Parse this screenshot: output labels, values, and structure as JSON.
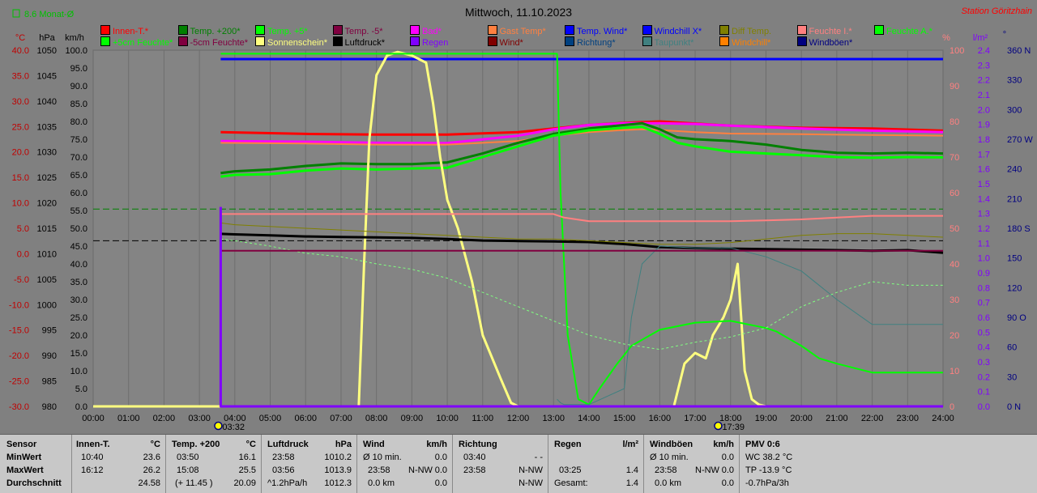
{
  "header": {
    "title": "Mittwoch, 11.10.2023",
    "station": "Station Göritzhain",
    "monthavg_label": "8.6 Monat-Ø"
  },
  "units": {
    "temp": "°C",
    "pressure": "hPa",
    "wind": "km/h",
    "percent": "%",
    "rain": "l/m²",
    "dir": "°"
  },
  "legend": [
    {
      "label": "Innen-T.*",
      "color": "#ff0000"
    },
    {
      "label": "Temp. +200*",
      "color": "#008000"
    },
    {
      "label": "Temp. +5*",
      "color": "#00ff00"
    },
    {
      "label": "Temp. -5*",
      "color": "#800040"
    },
    {
      "label": "Bad*",
      "color": "#ff00ff"
    },
    {
      "label": "Gast Temp*",
      "color": "#ff8040"
    },
    {
      "label": "Temp. Wind*",
      "color": "#0000ff"
    },
    {
      "label": "Windchill X*",
      "color": "#0000ff"
    },
    {
      "label": "Diff Temp.",
      "color": "#808000"
    },
    {
      "label": "Feuchte I.*",
      "color": "#ff8080"
    },
    {
      "label": "Feuchte A.*",
      "color": "#00ff00"
    },
    {
      "label": "+5cm Feuchte*",
      "color": "#00ff00"
    },
    {
      "label": "-5cm Feuchte*",
      "color": "#800040"
    },
    {
      "label": "Sonnenschein*",
      "color": "#ffff80"
    },
    {
      "label": "Luftdruck*",
      "color": "#000000"
    },
    {
      "label": "Regen",
      "color": "#8000ff"
    },
    {
      "label": "Wind*",
      "color": "#800000"
    },
    {
      "label": "Richtung*",
      "color": "#004080"
    },
    {
      "label": "Taupunkt*",
      "color": "#408080"
    },
    {
      "label": "Windchill*",
      "color": "#ff8000"
    },
    {
      "label": "Windböen*",
      "color": "#000080"
    }
  ],
  "axis_colors": {
    "temp": "#c00000",
    "pressure": "#000000",
    "wind": "#000000",
    "percent": "#ff8080",
    "rain": "#8000ff",
    "dir": "#000080"
  },
  "chart_data": {
    "type": "line",
    "x_range": [
      "00:00",
      "24:00"
    ],
    "x_ticks": [
      "00:00",
      "01:00",
      "02:00",
      "03:00",
      "04:00",
      "05:00",
      "06:00",
      "07:00",
      "08:00",
      "09:00",
      "10:00",
      "11:00",
      "12:00",
      "13:00",
      "14:00",
      "15:00",
      "16:00",
      "17:00",
      "18:00",
      "19:00",
      "20:00",
      "21:00",
      "22:00",
      "23:00",
      "24:00"
    ],
    "sunrise": "03:32",
    "sunset": "17:39",
    "y_axes": {
      "temp": {
        "ticks": [
          "40.0",
          "35.0",
          "30.0",
          "25.0",
          "20.0",
          "15.0",
          "10.0",
          "5.0",
          "0.0",
          "-5.0",
          "-10.0",
          "-15.0",
          "-20.0",
          "-25.0",
          "-30.0"
        ],
        "range": [
          -30,
          40
        ]
      },
      "pressure": {
        "ticks": [
          "1050",
          "1045",
          "1040",
          "1035",
          "1030",
          "1025",
          "1020",
          "1015",
          "1010",
          "1005",
          "1000",
          "995",
          "990",
          "985",
          "980"
        ],
        "range": [
          980,
          1050
        ]
      },
      "wind": {
        "ticks": [
          "100.0",
          "95.0",
          "90.0",
          "85.0",
          "80.0",
          "75.0",
          "70.0",
          "65.0",
          "60.0",
          "55.0",
          "50.0",
          "45.0",
          "40.0",
          "35.0",
          "30.0",
          "25.0",
          "20.0",
          "15.0",
          "10.0",
          "5.0",
          "0.0"
        ],
        "range": [
          0,
          100
        ]
      },
      "percent": {
        "ticks": [
          "100",
          "90",
          "80",
          "70",
          "60",
          "50",
          "40",
          "30",
          "20",
          "10",
          "0"
        ],
        "range": [
          0,
          100
        ]
      },
      "rain": {
        "ticks": [
          "2.4",
          "2.3",
          "2.2",
          "2.1",
          "2.0",
          "1.9",
          "1.8",
          "1.7",
          "1.6",
          "1.5",
          "1.4",
          "1.3",
          "1.2",
          "1.1",
          "1.0",
          "0.9",
          "0.8",
          "0.7",
          "0.6",
          "0.5",
          "0.4",
          "0.3",
          "0.2",
          "0.1",
          "0.0"
        ],
        "range": [
          0,
          2.5
        ]
      },
      "dir": {
        "ticks": [
          "360 N",
          "330",
          "300",
          "270 W",
          "240",
          "210",
          "180 S",
          "150",
          "120",
          "90 O",
          "60",
          "30",
          "0 N"
        ],
        "range": [
          0,
          360
        ]
      }
    },
    "series": [
      {
        "name": "Temp. Wind*",
        "axis": "percent",
        "color": "#0000ff",
        "width": 3,
        "x": [
          3.6,
          24
        ],
        "y": [
          97.5,
          97.5
        ]
      },
      {
        "name": "Innen-T.*",
        "axis": "percent",
        "color": "#ff0000",
        "width": 3,
        "x": [
          3.6,
          6,
          8,
          10,
          12,
          13,
          14,
          15,
          16,
          17,
          18,
          20,
          22,
          24
        ],
        "y": [
          77,
          76.5,
          76.3,
          76.3,
          77,
          78,
          79,
          79.6,
          80,
          79.4,
          78.8,
          78.2,
          78,
          77.4
        ]
      },
      {
        "name": "Bad*",
        "axis": "percent",
        "color": "#ff00ff",
        "width": 3,
        "x": [
          3.6,
          6,
          8,
          10,
          12,
          13,
          14,
          15,
          16,
          17,
          18,
          20,
          22,
          24
        ],
        "y": [
          74.5,
          74.3,
          74,
          73.9,
          76,
          77.8,
          79,
          79.5,
          79.5,
          79.3,
          78.8,
          78,
          77.4,
          77
        ]
      },
      {
        "name": "Gast Temp*",
        "axis": "percent",
        "color": "#ff8040",
        "width": 2,
        "x": [
          3.6,
          6,
          8,
          10,
          12,
          13,
          14,
          15,
          15.5,
          16,
          17,
          18,
          20,
          22,
          24
        ],
        "y": [
          74,
          73.8,
          73.5,
          73.5,
          74.5,
          76,
          77,
          77.6,
          77.8,
          77.6,
          77,
          76.6,
          76.4,
          76.2,
          76
        ]
      },
      {
        "name": "Temp. +200*",
        "axis": "percent",
        "color": "#008000",
        "width": 3,
        "x": [
          3.6,
          4,
          5,
          6,
          7,
          8,
          9,
          10,
          11,
          12,
          13,
          14,
          15,
          15.5,
          16,
          16.5,
          17,
          18,
          19,
          20,
          21,
          22,
          23,
          24
        ],
        "y": [
          65.5,
          66,
          66.5,
          67.5,
          68.2,
          68,
          68,
          68.5,
          71,
          74,
          76.5,
          78,
          79,
          79.5,
          77.8,
          75.5,
          75,
          74.5,
          73.5,
          72,
          71.2,
          71,
          71.2,
          71
        ]
      },
      {
        "name": "Feuchte A.*",
        "axis": "percent",
        "color": "#00ff00",
        "width": 3,
        "x": [
          3.6,
          4,
          5,
          6,
          7,
          8,
          9,
          10,
          11,
          12,
          13,
          14,
          15,
          15.5,
          16,
          16.5,
          17,
          18,
          19,
          20,
          21,
          22,
          23,
          24
        ],
        "y": [
          64.5,
          65,
          65.2,
          66.2,
          66.8,
          66.5,
          66.8,
          67,
          70,
          73,
          76,
          77.5,
          78.2,
          78.5,
          76.5,
          74,
          73,
          71.5,
          71,
          70.5,
          70,
          69.8,
          70,
          69.9
        ]
      },
      {
        "name": "Sonnenschein*",
        "axis": "wind",
        "color": "#ffff80",
        "width": 3,
        "x": [
          0,
          7.5,
          7.65,
          7.8,
          8.0,
          8.3,
          8.6,
          9.0,
          9.4,
          9.6,
          9.8,
          10.0,
          10.3,
          10.7,
          11.0,
          11.5,
          11.8,
          12.0,
          16.3,
          16.4,
          16.7,
          17.0,
          17.3,
          17.5,
          17.8,
          18.0,
          18.2,
          18.4,
          18.6,
          18.8,
          19,
          24
        ],
        "y": [
          0,
          0,
          40,
          75,
          93,
          98.5,
          99.5,
          98.5,
          96.5,
          85,
          70,
          58,
          50,
          35,
          20,
          8,
          1,
          0,
          0,
          0,
          12,
          15,
          13.5,
          20,
          25,
          30,
          40,
          10,
          2,
          0.5,
          0,
          0
        ]
      },
      {
        "name": "Taupunkt*",
        "axis": "percent",
        "color": "#00ff00",
        "width": 2,
        "x": [
          3.6,
          13.1,
          13.2,
          13.4,
          13.7,
          14.0,
          14.3,
          14.8,
          15.2,
          16,
          17,
          18,
          19,
          19.3,
          20,
          20.5,
          21,
          22,
          23,
          24
        ],
        "y": [
          99,
          99,
          60,
          20,
          2,
          0.5,
          5,
          12,
          17,
          21.5,
          23.5,
          24,
          22,
          21,
          17,
          13.5,
          12,
          9.5,
          9.5,
          9.5
        ]
      },
      {
        "name": "Luftdruck*",
        "axis": "pressure",
        "color": "#000000",
        "width": 3,
        "x": [
          3.6,
          4,
          5,
          6,
          7,
          8,
          9,
          10,
          11,
          12,
          13,
          14,
          15,
          16,
          17,
          18,
          19,
          20,
          21,
          22,
          23,
          24
        ],
        "y": [
          1013.9,
          1013.8,
          1013.6,
          1013.4,
          1013.3,
          1013.2,
          1013.1,
          1012.9,
          1012.6,
          1012.5,
          1012.4,
          1012.3,
          1011.9,
          1011.3,
          1011.1,
          1011,
          1010.9,
          1010.8,
          1010.7,
          1010.6,
          1010.7,
          1010.2
        ]
      },
      {
        "name": "Diff Temp.",
        "axis": "percent",
        "color": "#808000",
        "width": 1,
        "x": [
          3.6,
          4,
          6,
          8,
          10,
          11,
          12,
          13,
          14,
          15,
          16,
          17,
          18,
          19,
          20,
          21,
          22,
          23,
          24
        ],
        "y": [
          51.5,
          51,
          50,
          49,
          48,
          47.5,
          47,
          47,
          46.5,
          46,
          45.5,
          45.5,
          46,
          47,
          48,
          48.5,
          48.5,
          48,
          47.5
        ]
      },
      {
        "name": "Feuchte I.*",
        "axis": "percent",
        "color": "#ff8080",
        "width": 2,
        "x": [
          3.6,
          4,
          6,
          8,
          10,
          12,
          13,
          13.3,
          14,
          15,
          16,
          17,
          18,
          19,
          20,
          21,
          22,
          23,
          24
        ],
        "y": [
          54,
          54,
          54,
          54,
          54,
          54,
          54,
          53,
          52,
          52,
          52,
          52,
          52,
          52.2,
          52.5,
          53,
          53.5,
          53.5,
          53.5
        ]
      },
      {
        "name": "Richtung*",
        "axis": "percent",
        "color": "#408080",
        "width": 1,
        "x": [
          13.1,
          13.2,
          13.3,
          13.5,
          14,
          15,
          15.2,
          15.5,
          16,
          17,
          18,
          19,
          20,
          21,
          22,
          23,
          24
        ],
        "y": [
          2,
          1,
          0.5,
          0.5,
          0.5,
          5,
          25,
          40,
          45,
          44.5,
          44.5,
          42,
          38,
          30,
          23,
          23,
          23
        ]
      },
      {
        "name": "+5cm Feuchte*",
        "axis": "percent",
        "color": "#80ff80",
        "width": 1,
        "dash": "3,3",
        "x": [
          3.6,
          4,
          5,
          6,
          7,
          8,
          9,
          10,
          11,
          12,
          13,
          14,
          15,
          16,
          17,
          18,
          19,
          20,
          21,
          22,
          23,
          24
        ],
        "y": [
          47,
          46.5,
          45,
          43,
          42,
          40,
          38.5,
          36,
          32,
          28,
          24,
          20,
          17.5,
          16,
          18,
          19.5,
          22,
          28,
          32,
          35,
          34,
          34
        ]
      },
      {
        "name": "Temp. -5*",
        "axis": "percent",
        "color": "#800040",
        "width": 2,
        "x": [
          3.6,
          24
        ],
        "y": [
          43.7,
          43.7
        ]
      },
      {
        "name": "Regen",
        "axis": "rain",
        "color": "#8000ff",
        "width": 3,
        "x": [
          3.6,
          3.6,
          24
        ],
        "y": [
          1.4,
          0,
          0
        ]
      }
    ],
    "ref_lines": [
      {
        "name": "monthavg",
        "axis": "percent",
        "y": 55.4,
        "color": "#008000",
        "dash": "8,4"
      },
      {
        "name": "freeze",
        "axis": "percent",
        "y": 46.5,
        "color": "#000000",
        "dash": "8,4"
      }
    ]
  },
  "stats": {
    "row_labels": [
      "Sensor",
      "MinWert",
      "MaxWert",
      "Durchschnitt"
    ],
    "innen": {
      "title": "Innen-T.",
      "unit": "°C",
      "min_time": "10:40",
      "min_val": "23.6",
      "max_time": "16:12",
      "max_val": "26.2",
      "avg": "24.58"
    },
    "temp200": {
      "title": "Temp. +200",
      "unit": "°C",
      "min_time": "03:50",
      "min_val": "16.1",
      "max_time": "15:08",
      "max_val": "25.5",
      "avg_note": "(+ 11.45 )",
      "avg": "20.09"
    },
    "luftdruck": {
      "title": "Luftdruck",
      "unit": "hPa",
      "min_time": "23:58",
      "min_val": "1010.2",
      "max_time": "03:56",
      "max_val": "1013.9",
      "avg_note": "^1.2hPa/h",
      "avg": "1012.3"
    },
    "wind": {
      "title": "Wind",
      "unit": "km/h",
      "row1_label": "Ø 10 min.",
      "row1_val": "0.0",
      "row2_time": "23:58",
      "row2_dir": "N-NW",
      "row2_val": "0.0",
      "row3_label": "0.0 km",
      "row3_val": "0.0"
    },
    "richtung": {
      "title": "Richtung",
      "row1_time": "03:40",
      "row1_val": "- -",
      "row2_time": "23:58",
      "row2_val": "N-NW",
      "row3_val": "N-NW"
    },
    "regen": {
      "title": "Regen",
      "unit": "l/m²",
      "row2_time": "03:25",
      "row2_val": "1.4",
      "row3_label": "Gesamt:",
      "row3_val": "1.4"
    },
    "windboeen": {
      "title": "Windböen",
      "unit": "km/h",
      "row1_label": "Ø 10 min.",
      "row1_val": "0.0",
      "row2_time": "23:58",
      "row2_dir": "N-NW",
      "row2_val": "0.0",
      "row3_label": "0.0 km",
      "row3_val": "0.0"
    },
    "pmv": {
      "title": "PMV 0:6",
      "row1": "WC 38.2 °C",
      "row2": "TP -13.9 °C",
      "row3": "-0.7hPa/3h"
    }
  }
}
